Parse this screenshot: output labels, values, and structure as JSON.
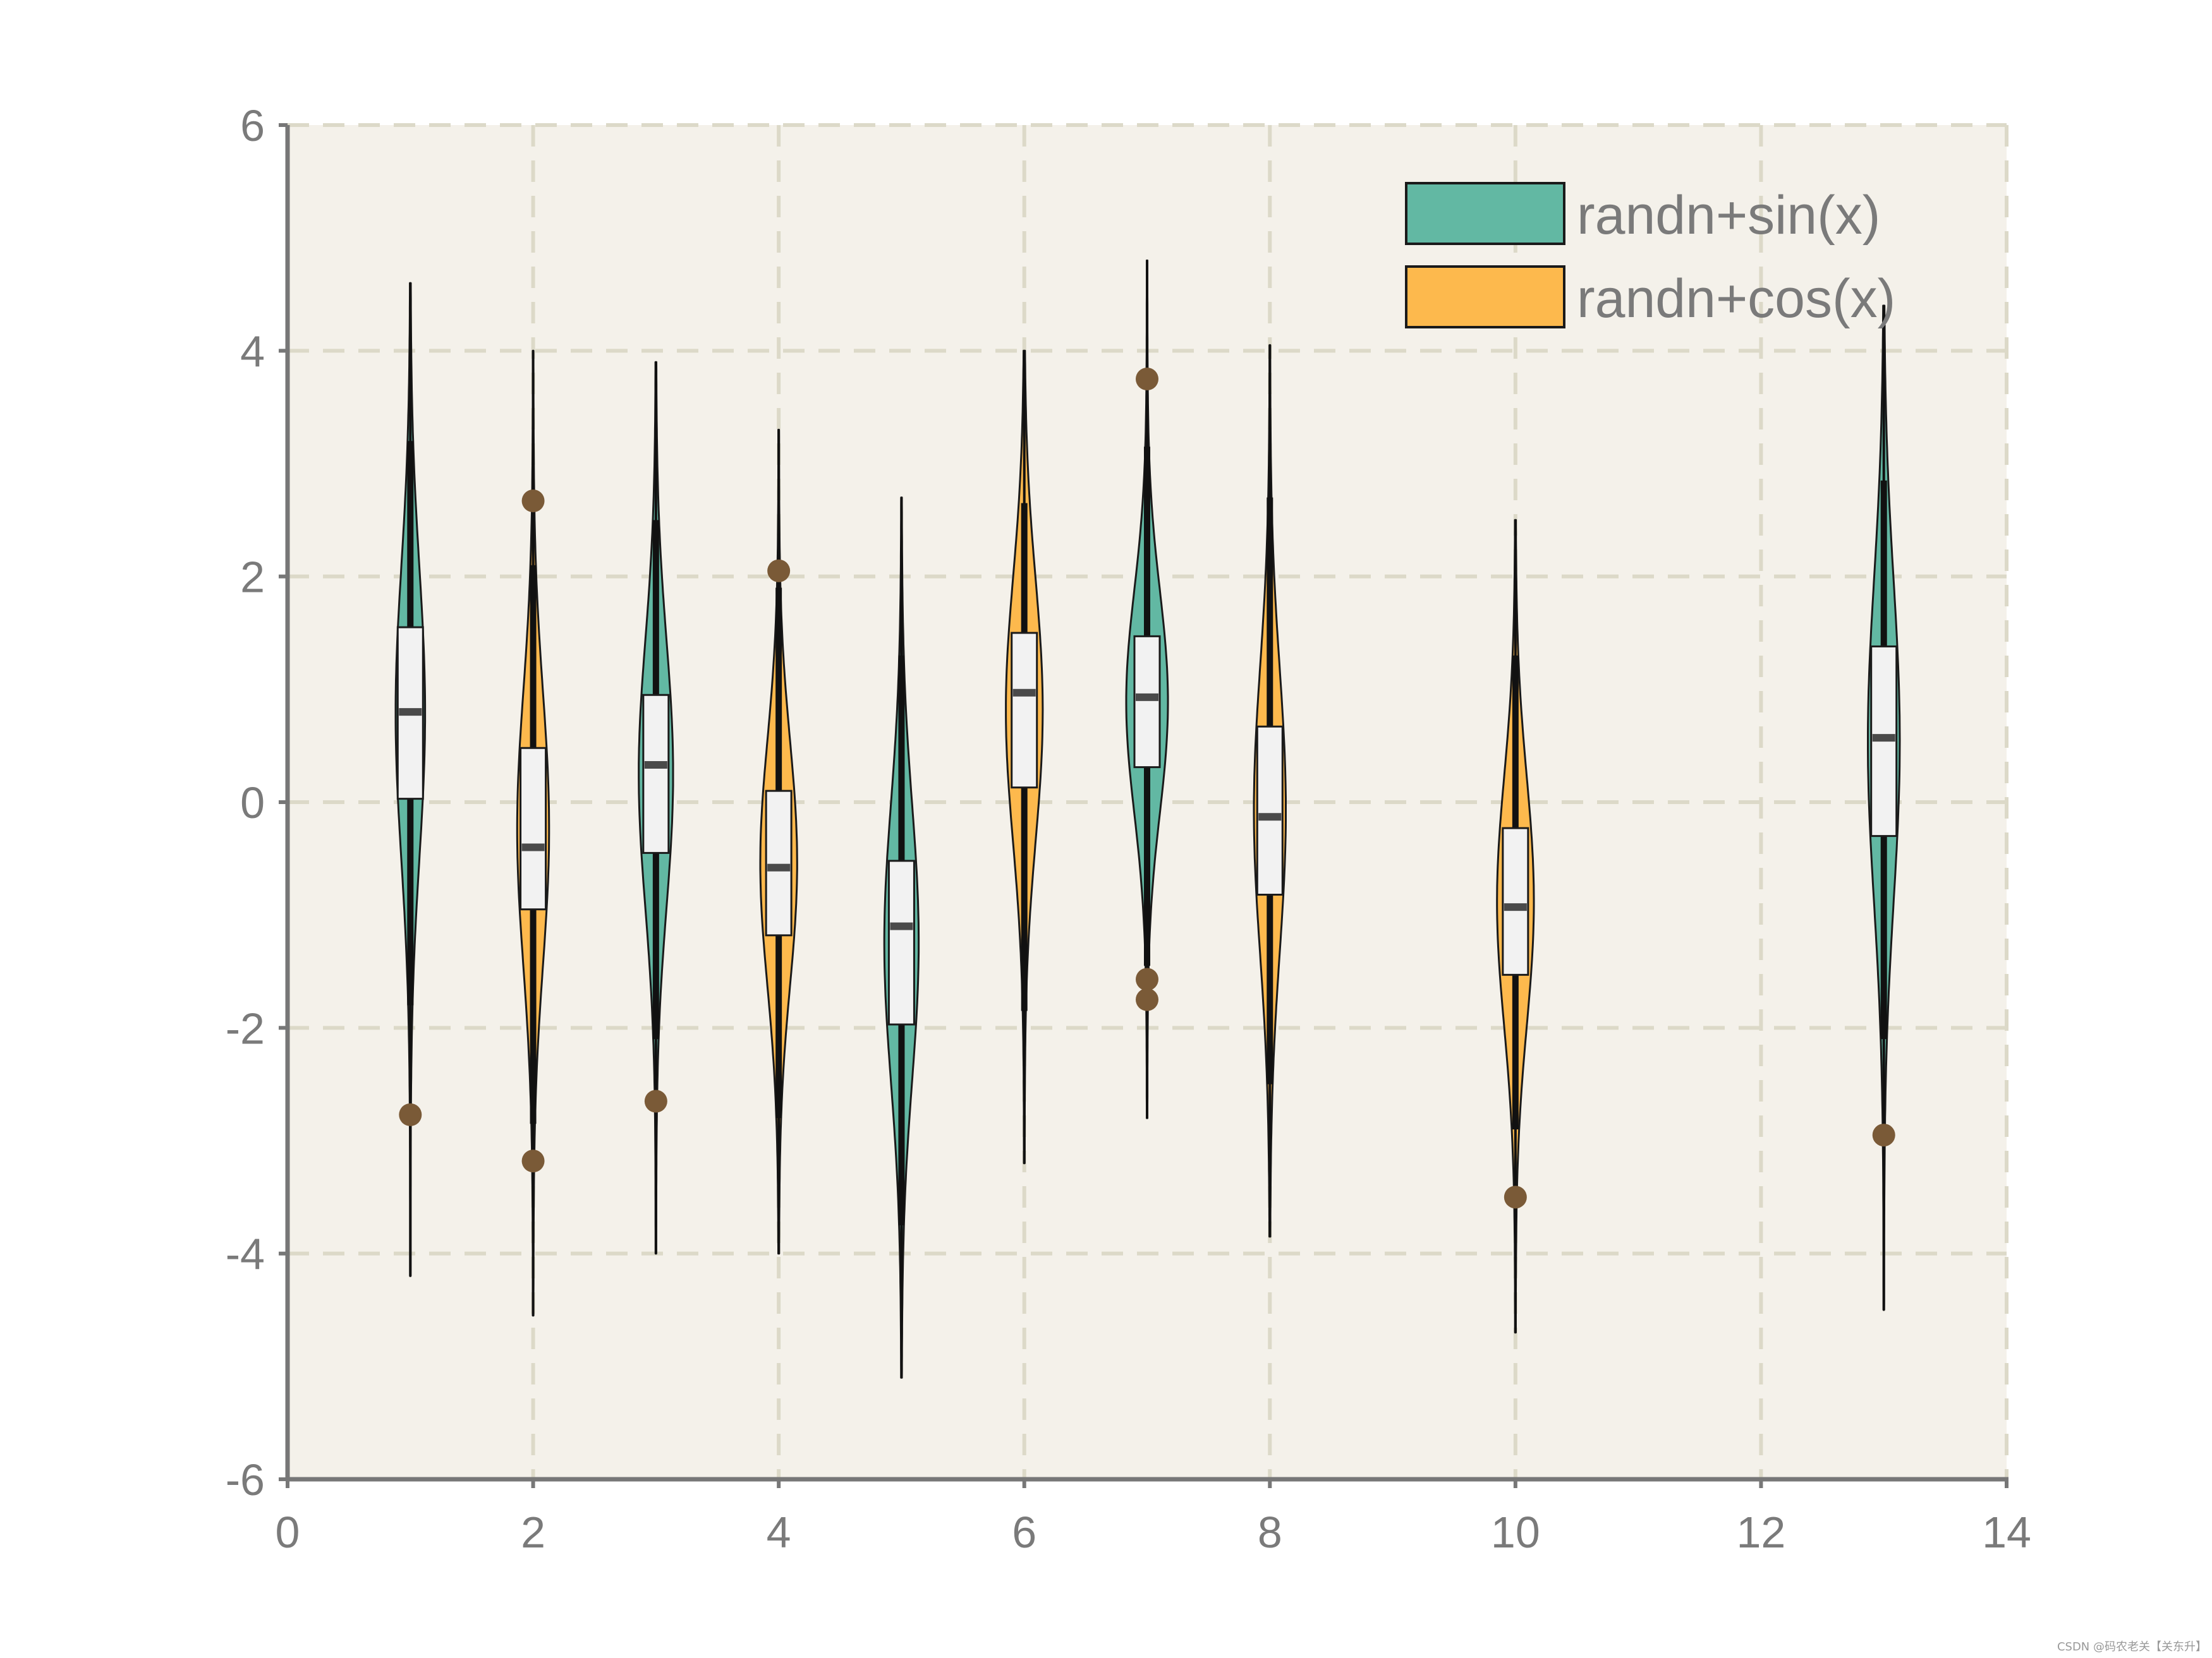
{
  "chart_data": {
    "type": "violin",
    "title": "",
    "xlabel": "",
    "ylabel": "",
    "xlim": [
      0,
      14
    ],
    "ylim": [
      -6,
      6
    ],
    "xticks": [
      0,
      2,
      4,
      6,
      8,
      10,
      12,
      14
    ],
    "yticks": [
      -6,
      -4,
      -2,
      0,
      2,
      4,
      6
    ],
    "grid": true,
    "legend_position": "top-right",
    "colors": {
      "sin": "#62b8a3",
      "cos": "#fdb94d",
      "background": "#f4f1ea",
      "grid": "#dcd9c8",
      "axis": "#777777",
      "box": "#f2f2f2",
      "median": "#4a4a4a",
      "outlier": "#7a5a37"
    },
    "legend": [
      {
        "key": "sin",
        "label": "randn+sin(x)"
      },
      {
        "key": "cos",
        "label": "randn+cos(x)"
      }
    ],
    "violins": [
      {
        "x": 1,
        "series": "sin",
        "max": 4.6,
        "min": -4.2,
        "whisker_high": 3.2,
        "whisker_low": -1.8,
        "q3": 1.55,
        "median": 0.8,
        "q1": 0.03,
        "width": 0.12,
        "outliers": [
          -2.77
        ]
      },
      {
        "x": 2,
        "series": "cos",
        "max": 4.0,
        "min": -4.55,
        "whisker_high": 2.1,
        "whisker_low": -2.85,
        "q3": 0.48,
        "median": -0.4,
        "q1": -0.95,
        "width": 0.13,
        "outliers": [
          2.67,
          -3.18
        ]
      },
      {
        "x": 3,
        "series": "sin",
        "max": 3.9,
        "min": -4.0,
        "whisker_high": 2.5,
        "whisker_low": -2.1,
        "q3": 0.95,
        "median": 0.33,
        "q1": -0.45,
        "width": 0.14,
        "outliers": [
          -2.65
        ]
      },
      {
        "x": 4,
        "series": "cos",
        "max": 3.3,
        "min": -4.0,
        "whisker_high": 1.9,
        "whisker_low": -2.8,
        "q3": 0.1,
        "median": -0.58,
        "q1": -1.18,
        "width": 0.15,
        "outliers": [
          2.05
        ]
      },
      {
        "x": 5,
        "series": "sin",
        "max": 2.7,
        "min": -5.1,
        "whisker_high": 1.3,
        "whisker_low": -3.75,
        "q3": -0.52,
        "median": -1.1,
        "q1": -1.97,
        "width": 0.14,
        "outliers": []
      },
      {
        "x": 6,
        "series": "cos",
        "max": 4.0,
        "min": -3.2,
        "whisker_high": 2.65,
        "whisker_low": -1.85,
        "q3": 1.5,
        "median": 0.97,
        "q1": 0.13,
        "width": 0.15,
        "outliers": []
      },
      {
        "x": 7,
        "series": "sin",
        "max": 4.8,
        "min": -2.8,
        "whisker_high": 3.15,
        "whisker_low": -1.45,
        "q3": 1.47,
        "median": 0.93,
        "q1": 0.31,
        "width": 0.17,
        "outliers": [
          3.75,
          -1.57,
          -1.75
        ]
      },
      {
        "x": 8,
        "series": "cos",
        "max": 4.05,
        "min": -3.85,
        "whisker_high": 2.7,
        "whisker_low": -2.5,
        "q3": 0.67,
        "median": -0.13,
        "q1": -0.82,
        "width": 0.13,
        "outliers": []
      },
      {
        "x": 10,
        "series": "cos",
        "max": 2.5,
        "min": -4.7,
        "whisker_high": 1.3,
        "whisker_low": -2.9,
        "q3": -0.23,
        "median": -0.93,
        "q1": -1.53,
        "width": 0.15,
        "outliers": [
          -3.5
        ]
      },
      {
        "x": 13,
        "series": "sin",
        "max": 4.4,
        "min": -4.5,
        "whisker_high": 2.85,
        "whisker_low": -2.1,
        "q3": 1.38,
        "median": 0.57,
        "q1": -0.3,
        "width": 0.13,
        "outliers": [
          -2.95
        ]
      }
    ]
  },
  "watermark": "CSDN @码农老关【关东升】"
}
